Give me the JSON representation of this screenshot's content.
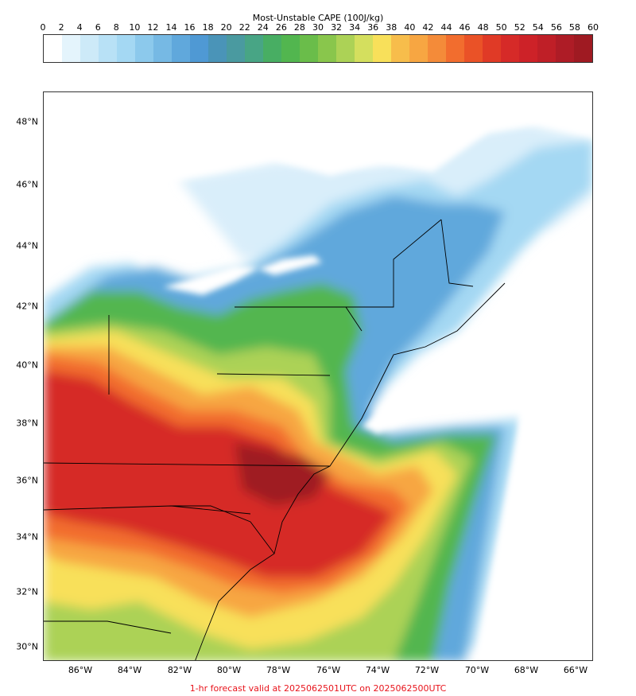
{
  "colorbar": {
    "title": "Most-Unstable CAPE (100J/kg)",
    "tick_labels": [
      "0",
      "2",
      "4",
      "6",
      "8",
      "10",
      "12",
      "14",
      "16",
      "18",
      "20",
      "22",
      "24",
      "26",
      "28",
      "30",
      "32",
      "34",
      "36",
      "38",
      "40",
      "42",
      "44",
      "46",
      "48",
      "50",
      "52",
      "54",
      "56",
      "58",
      "60"
    ],
    "colors": [
      "#ffffff",
      "#e4f4fc",
      "#cdeaf8",
      "#b8e1f6",
      "#a4d8f3",
      "#8cc9ec",
      "#76b9e4",
      "#60a8dc",
      "#4f99d4",
      "#4a94b8",
      "#4a9aa0",
      "#48a585",
      "#48ae63",
      "#52b64f",
      "#6abd4a",
      "#89c64c",
      "#acd256",
      "#d4df5e",
      "#f8e05a",
      "#f7bd4b",
      "#f7a642",
      "#f48b39",
      "#f26d2e",
      "#ea5227",
      "#e03a26",
      "#d62a28",
      "#cd2228",
      "#bf1f27",
      "#ae1c26",
      "#9f1a22"
    ]
  },
  "map": {
    "lat_labels": [
      "48°N",
      "46°N",
      "44°N",
      "42°N",
      "40°N",
      "38°N",
      "36°N",
      "34°N",
      "32°N",
      "30°N"
    ],
    "lon_labels": [
      "86°W",
      "84°W",
      "82°W",
      "80°W",
      "78°W",
      "76°W",
      "74°W",
      "72°W",
      "70°W",
      "68°W",
      "66°W"
    ],
    "fill_colors": {
      "none": "#ffffff",
      "very_light": "#d9eefa",
      "light_blue": "#a4d8f3",
      "blue": "#60a8dc",
      "teal": "#4a9aa0",
      "green": "#52b64f",
      "yellow_green": "#acd256",
      "yellow": "#f8e05a",
      "orange": "#f7a642",
      "dark_orange": "#f26d2e",
      "red": "#d62a28",
      "dark_red": "#9f1a22"
    },
    "boundary_color": "#000000"
  },
  "footer": "1-hr forecast valid at 2025062501UTC on 2025062500UTC"
}
